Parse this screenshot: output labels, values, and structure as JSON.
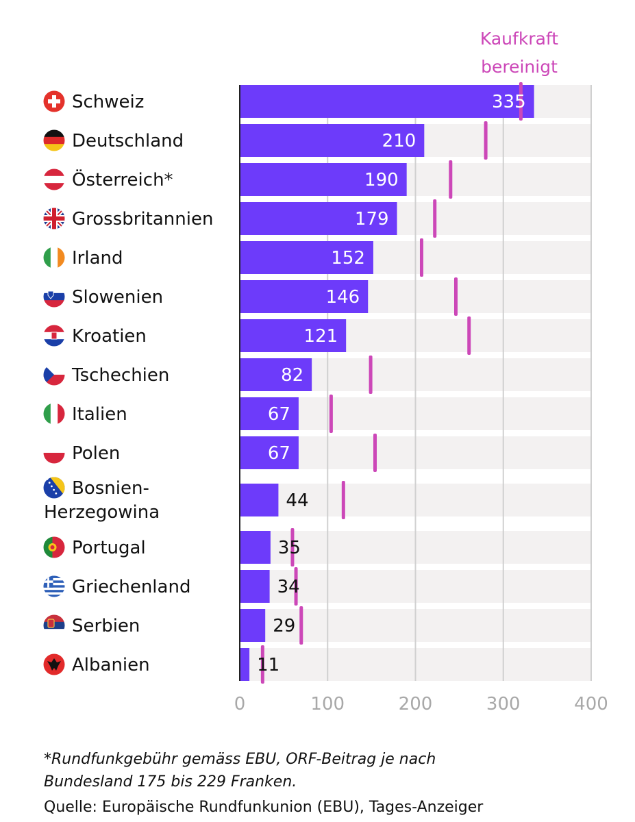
{
  "chart_data": {
    "type": "bar",
    "orientation": "horizontal",
    "categories": [
      "Schweiz",
      "Deutschland",
      "Österreich*",
      "Grossbritannien",
      "Irland",
      "Slowenien",
      "Kroatien",
      "Tschechien",
      "Italien",
      "Polen",
      "Bosnien-Herzegowina",
      "Portugal",
      "Griechenland",
      "Serbien",
      "Albanien"
    ],
    "category_lines": [
      [
        "Schweiz"
      ],
      [
        "Deutschland"
      ],
      [
        "Österreich*"
      ],
      [
        "Grossbritannien"
      ],
      [
        "Irland"
      ],
      [
        "Slowenien"
      ],
      [
        "Kroatien"
      ],
      [
        "Tschechien"
      ],
      [
        "Italien"
      ],
      [
        "Polen"
      ],
      [
        "Bosnien-",
        "Herzegowina"
      ],
      [
        "Portugal"
      ],
      [
        "Griechenland"
      ],
      [
        "Serbien"
      ],
      [
        "Albanien"
      ]
    ],
    "flags": [
      "swiss-flag-icon",
      "german-flag-icon",
      "austrian-flag-icon",
      "british-flag-icon",
      "irish-flag-icon",
      "slovenian-flag-icon",
      "croatian-flag-icon",
      "czech-flag-icon",
      "italian-flag-icon",
      "polish-flag-icon",
      "bosnian-flag-icon",
      "portuguese-flag-icon",
      "greek-flag-icon",
      "serbian-flag-icon",
      "albanian-flag-icon"
    ],
    "series": [
      {
        "name": "Rundfunkgebühr",
        "values": [
          335,
          210,
          190,
          179,
          152,
          146,
          121,
          82,
          67,
          67,
          44,
          35,
          34,
          29,
          11
        ]
      },
      {
        "name": "Kaufkraft bereinigt",
        "label_lines": [
          "Kaufkraft",
          "bereinigt"
        ],
        "values": [
          320,
          280,
          240,
          222,
          207,
          246,
          261,
          149,
          104,
          154,
          118,
          60,
          64,
          70,
          26
        ]
      }
    ],
    "xlim": [
      0,
      400
    ],
    "xticks": [
      "0",
      "100",
      "200",
      "300",
      "400"
    ],
    "grid": true,
    "colors": {
      "bar": "#6d3bfa",
      "marker": "#cc47b8",
      "track": "#f3f1f1",
      "grid": "#d0d0d0"
    }
  },
  "footnote": {
    "line1": "*Rundfunkgebühr gemäss EBU, ORF-Beitrag je nach",
    "line2": "Bundesland 175 bis 229 Franken."
  },
  "source": "Quelle: Europäische Rundfunkunion (EBU), Tages-Anzeiger"
}
